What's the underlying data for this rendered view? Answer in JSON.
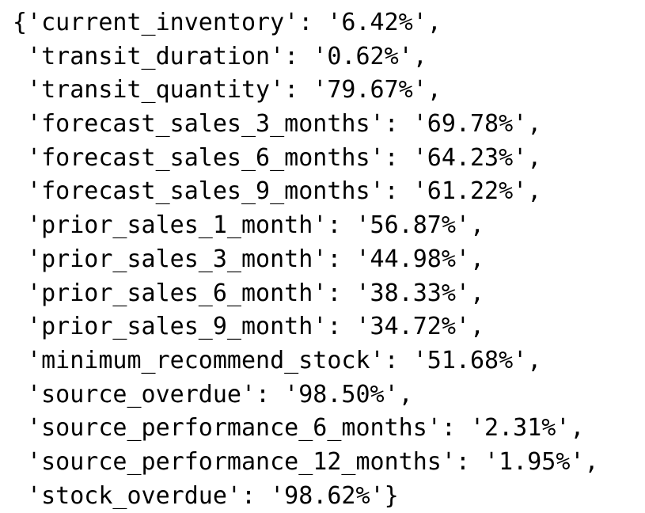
{
  "lines": [
    "{'current_inventory': '6.42%',",
    " 'transit_duration': '0.62%',",
    " 'transit_quantity': '79.67%',",
    " 'forecast_sales_3_months': '69.78%',",
    " 'forecast_sales_6_months': '64.23%',",
    " 'forecast_sales_9_months': '61.22%',",
    " 'prior_sales_1_month': '56.87%',",
    " 'prior_sales_3_month': '44.98%',",
    " 'prior_sales_6_month': '38.33%',",
    " 'prior_sales_9_month': '34.72%',",
    " 'minimum_recommend_stock': '51.68%',",
    " 'source_overdue': '98.50%',",
    " 'source_performance_6_months': '2.31%',",
    " 'source_performance_12_months': '1.95%',",
    " 'stock_overdue': '98.62%'}"
  ]
}
